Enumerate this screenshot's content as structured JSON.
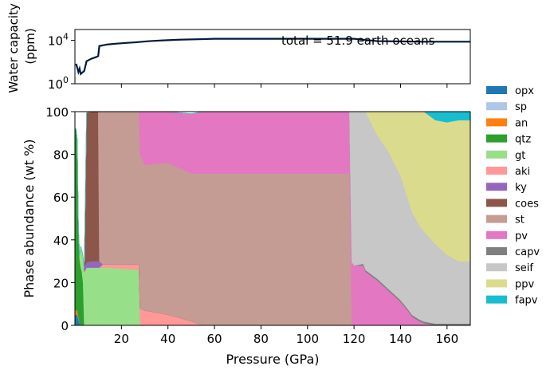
{
  "chart_data": [
    {
      "type": "line",
      "ylabel_lines": [
        "Water capacity",
        "(ppm)"
      ],
      "yscale": "log",
      "ylim": [
        1,
        100000
      ],
      "xlim": [
        0,
        170
      ],
      "yticks": [
        {
          "value": 1,
          "label": "10",
          "exp": "0"
        },
        {
          "value": 10000,
          "label": "10",
          "exp": "4"
        }
      ],
      "annotation": "total = 51.9 earth oceans",
      "color": "#001a3d",
      "series": [
        {
          "x": [
            0.5,
            1,
            1.5,
            2,
            2.5,
            3,
            4,
            5,
            7,
            9,
            10,
            10.5,
            14,
            18,
            22,
            26,
            28,
            32,
            38,
            45,
            55,
            60,
            80,
            100,
            120,
            130,
            150,
            170
          ],
          "y": [
            70,
            30,
            12,
            25,
            8,
            10,
            15,
            120,
            200,
            280,
            350,
            3000,
            4200,
            5000,
            5800,
            6600,
            7200,
            8500,
            10000,
            11500,
            13000,
            14000,
            14000,
            14000,
            14000,
            8500,
            7500,
            7500
          ]
        }
      ]
    },
    {
      "type": "area",
      "stacked": true,
      "xlabel": "Pressure (GPa)",
      "ylabel": "Phase abundance (wt %)",
      "xlim": [
        0,
        170
      ],
      "ylim": [
        0,
        100
      ],
      "xticks": [
        20,
        40,
        60,
        80,
        100,
        120,
        140,
        160
      ],
      "yticks": [
        0,
        20,
        40,
        60,
        80,
        100
      ],
      "legend_position": "right",
      "x": [
        0,
        0.5,
        1,
        1.5,
        2,
        2.5,
        3,
        3.5,
        4,
        5,
        7,
        10,
        10.5,
        12,
        14,
        20,
        27.5,
        28,
        30,
        40,
        50,
        55,
        60,
        80,
        100,
        118,
        119,
        119.5,
        120,
        124,
        125,
        130,
        135,
        140,
        143,
        145,
        148,
        150,
        155,
        160,
        165,
        170
      ],
      "series": [
        {
          "name": "opx",
          "color": "#1f77b4",
          "values": [
            5,
            5,
            5,
            3,
            1,
            0,
            0,
            0,
            0,
            0,
            0,
            0,
            0,
            0,
            0,
            0,
            0,
            0,
            0,
            0,
            0,
            0,
            0,
            0,
            0,
            0,
            0,
            0,
            0,
            0,
            0,
            0,
            0,
            0,
            0,
            0,
            0,
            0,
            0,
            0,
            0,
            0
          ]
        },
        {
          "name": "sp",
          "color": "#aec7e8",
          "values": [
            0,
            0,
            0,
            0,
            0,
            0,
            0,
            0,
            0,
            0,
            0,
            0,
            0,
            0,
            0,
            0,
            0,
            0,
            0,
            0,
            0,
            0,
            0,
            0,
            0,
            0,
            0,
            0,
            0,
            0,
            0,
            0,
            0,
            0,
            0,
            0,
            0,
            0,
            0,
            0,
            0,
            0
          ]
        },
        {
          "name": "an",
          "color": "#ff7f0e",
          "values": [
            2,
            2,
            2,
            1,
            0,
            0,
            0,
            0,
            0,
            0,
            0,
            0,
            0,
            0,
            0,
            0,
            0,
            0,
            0,
            0,
            0,
            0,
            0,
            0,
            0,
            0,
            0,
            0,
            0,
            0,
            0,
            0,
            0,
            0,
            0,
            0,
            0,
            0,
            0,
            0,
            0,
            0
          ]
        },
        {
          "name": "qtz",
          "color": "#2ca02c",
          "values": [
            85,
            85,
            80,
            40,
            30,
            27,
            25,
            20,
            0,
            0,
            0,
            0,
            0,
            0,
            0,
            0,
            0,
            0,
            0,
            0,
            0,
            0,
            0,
            0,
            0,
            0,
            0,
            0,
            0,
            0,
            0,
            0,
            0,
            0,
            0,
            0,
            0,
            0,
            0,
            0,
            0,
            0
          ]
        },
        {
          "name": "gt",
          "color": "#98df8a",
          "values": [
            0,
            0,
            0,
            2,
            2,
            10,
            10,
            12,
            25,
            27,
            27,
            27,
            27,
            27,
            27,
            26.5,
            26,
            0,
            0,
            0,
            0,
            0,
            0,
            0,
            0,
            0,
            0,
            0,
            0,
            0,
            0,
            0,
            0,
            0,
            0,
            0,
            0,
            0,
            0,
            0,
            0,
            0
          ]
        },
        {
          "name": "aki",
          "color": "#ff9896",
          "values": [
            0,
            0,
            0,
            0,
            0,
            0,
            0,
            0,
            0,
            0,
            0,
            0,
            0,
            1.5,
            1.5,
            2,
            2.5,
            8,
            7,
            5,
            2,
            0,
            0,
            0,
            0,
            0,
            0,
            0,
            0,
            0,
            0,
            0,
            0,
            0,
            0,
            0,
            0,
            0,
            0,
            0,
            0,
            0
          ]
        },
        {
          "name": "ky",
          "color": "#9467bd",
          "values": [
            0,
            0,
            0,
            0,
            0,
            0,
            0,
            0,
            2,
            2.5,
            3,
            3,
            3,
            0,
            0,
            0,
            0,
            0,
            0,
            0,
            0,
            0,
            0,
            0,
            0,
            0,
            0,
            0,
            0,
            0,
            0,
            0,
            0,
            0,
            0,
            0,
            0,
            0,
            0,
            0,
            0,
            0
          ]
        },
        {
          "name": "coes",
          "color": "#8c564b",
          "values": [
            0,
            0,
            0,
            0,
            0,
            0,
            0,
            0,
            0,
            70,
            70,
            70,
            0,
            0,
            0,
            0,
            0,
            0,
            0,
            0,
            0,
            0,
            0,
            0,
            0,
            0,
            0,
            0,
            0,
            0,
            0,
            0,
            0,
            0,
            0,
            0,
            0,
            0,
            0,
            0,
            0,
            0
          ]
        },
        {
          "name": "st",
          "color": "#c49c94",
          "values": [
            0,
            0,
            0,
            0,
            0,
            0,
            0,
            0,
            0,
            0,
            0,
            0,
            70,
            71.5,
            71.5,
            71.5,
            71.5,
            72,
            68,
            71,
            69,
            71,
            71,
            71,
            71,
            71,
            0,
            0,
            0,
            0,
            0,
            0,
            0,
            0,
            0,
            0,
            0,
            0,
            0,
            0,
            0,
            0
          ]
        },
        {
          "name": "pv",
          "color": "#e377c2",
          "values": [
            0,
            0,
            0,
            0,
            0,
            0,
            0,
            0,
            0,
            0,
            0,
            0,
            0,
            0,
            0,
            0,
            0,
            20,
            25,
            24,
            28,
            29,
            29,
            29,
            29,
            29,
            29,
            29,
            28,
            28,
            25,
            21,
            16,
            11,
            7,
            4,
            2,
            1,
            0,
            0,
            0,
            0
          ]
        },
        {
          "name": "capv",
          "color": "#7f7f7f",
          "values": [
            0,
            0,
            0,
            0,
            0,
            0,
            0,
            0,
            0,
            0,
            0,
            0,
            0,
            0,
            0,
            0,
            0,
            0,
            0,
            0,
            0,
            0,
            0,
            0,
            0,
            0,
            0,
            0,
            0,
            0.8,
            0.8,
            0.8,
            0.8,
            0.8,
            0.8,
            0.8,
            0.8,
            0.8,
            0.8,
            0.8,
            0.8,
            0.8
          ]
        },
        {
          "name": "seif",
          "color": "#c7c7c7",
          "values": [
            0,
            0,
            0,
            0,
            0,
            0,
            0,
            0,
            0,
            0,
            0,
            0,
            0,
            0,
            0,
            0,
            0,
            0,
            0,
            0,
            0,
            0,
            0,
            0,
            0,
            0,
            71,
            71,
            72,
            71.2,
            74.2,
            67.2,
            64.2,
            58.2,
            52.2,
            48.2,
            44.2,
            42.2,
            37.2,
            32.2,
            29.2,
            29.2
          ]
        },
        {
          "name": "ppv",
          "color": "#dbdb8d",
          "values": [
            0,
            0,
            0,
            0,
            0,
            0,
            0,
            0,
            0,
            0,
            0,
            0,
            0,
            0,
            0,
            0,
            0,
            0,
            0,
            0,
            0,
            0,
            0,
            0,
            0,
            0,
            0,
            0,
            0,
            0,
            0,
            11,
            19,
            30,
            40,
            47,
            53,
            56,
            58,
            62,
            66,
            66
          ]
        },
        {
          "name": "fapv",
          "color": "#17becf",
          "values": [
            0,
            0,
            0,
            0,
            0,
            0,
            0,
            0,
            0,
            0,
            0,
            0,
            0,
            0,
            0,
            0,
            0,
            0,
            0,
            0,
            0,
            0,
            0,
            0,
            0,
            0,
            0,
            0,
            0,
            0,
            0,
            0,
            0,
            0,
            0,
            0,
            0,
            0,
            4,
            5,
            4,
            4
          ]
        }
      ]
    }
  ]
}
